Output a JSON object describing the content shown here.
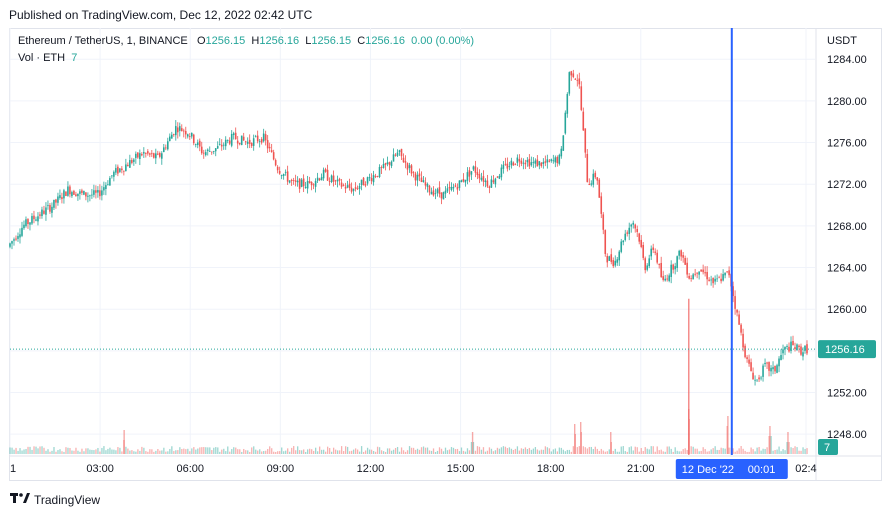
{
  "header": {
    "published": "Published on TradingView.com, Dec 12, 2022 02:42 UTC"
  },
  "legend": {
    "symbol": "Ethereum / TetherUS, 1, BINANCE",
    "o_label": "O",
    "o_value": "1256.15",
    "h_label": "H",
    "h_value": "1256.16",
    "l_label": "L",
    "l_value": "1256.15",
    "c_label": "C",
    "c_value": "1256.16",
    "change": "0.00 (0.00%)",
    "vol_label": "Vol · ETH",
    "vol_value": "7"
  },
  "footer": {
    "brand": "TradingView"
  },
  "colors": {
    "up": "#26a69a",
    "down": "#ef5350",
    "crosshair": "#2962ff",
    "grid": "#f0f3fa"
  },
  "chart_data": {
    "type": "candlestick",
    "currency_label": "USDT",
    "last_price": 1256.16,
    "last_price_label": "1256.16",
    "last_volume_label": "7",
    "ylim": [
      1246.0,
      1287.0
    ],
    "y_ticks": [
      1248,
      1252,
      1256,
      1260,
      1264,
      1268,
      1272,
      1276,
      1280,
      1284
    ],
    "y_tick_labels": [
      "1248.00",
      "1252.00",
      "1256.00",
      "1260.00",
      "1264.00",
      "1268.00",
      "1272.00",
      "1276.00",
      "1280.00",
      "1284.00"
    ],
    "x_ticks": [
      0,
      3,
      6,
      9,
      12,
      15,
      18,
      21,
      24.03,
      26.5
    ],
    "x_tick_labels": [
      "1",
      "03:00",
      "06:00",
      "09:00",
      "12:00",
      "15:00",
      "18:00",
      "21:00",
      "",
      "02:4"
    ],
    "xlim": [
      0,
      26.8
    ],
    "crosshair_time": 24.03,
    "crosshair_date_label": "12 Dec '22",
    "crosshair_time_label": "00:01",
    "price_path": [
      [
        0.0,
        1266.0
      ],
      [
        0.5,
        1268.0
      ],
      [
        1.0,
        1269.0
      ],
      [
        1.5,
        1270.0
      ],
      [
        2.0,
        1271.5
      ],
      [
        2.5,
        1271.0
      ],
      [
        3.0,
        1271.0
      ],
      [
        3.5,
        1273.0
      ],
      [
        4.0,
        1274.0
      ],
      [
        4.5,
        1275.0
      ],
      [
        5.0,
        1274.5
      ],
      [
        5.3,
        1276.0
      ],
      [
        5.6,
        1277.5
      ],
      [
        6.0,
        1277.0
      ],
      [
        6.5,
        1275.0
      ],
      [
        7.0,
        1275.5
      ],
      [
        7.5,
        1276.5
      ],
      [
        8.0,
        1276.0
      ],
      [
        8.5,
        1276.5
      ],
      [
        9.0,
        1273.5
      ],
      [
        9.5,
        1272.0
      ],
      [
        10.0,
        1272.0
      ],
      [
        10.5,
        1273.0
      ],
      [
        11.0,
        1272.0
      ],
      [
        11.5,
        1271.5
      ],
      [
        12.0,
        1272.5
      ],
      [
        12.5,
        1273.5
      ],
      [
        13.0,
        1275.0
      ],
      [
        13.5,
        1273.0
      ],
      [
        14.0,
        1271.5
      ],
      [
        14.5,
        1271.0
      ],
      [
        15.0,
        1272.0
      ],
      [
        15.5,
        1273.5
      ],
      [
        16.0,
        1272.0
      ],
      [
        16.5,
        1273.5
      ],
      [
        17.0,
        1274.5
      ],
      [
        17.5,
        1274.0
      ],
      [
        18.0,
        1274.0
      ],
      [
        18.4,
        1274.5
      ],
      [
        18.7,
        1283.0
      ],
      [
        19.0,
        1282.0
      ],
      [
        19.3,
        1272.0
      ],
      [
        19.6,
        1273.0
      ],
      [
        19.9,
        1265.0
      ],
      [
        20.2,
        1264.5
      ],
      [
        20.5,
        1267.0
      ],
      [
        20.8,
        1268.5
      ],
      [
        21.0,
        1267.0
      ],
      [
        21.2,
        1264.0
      ],
      [
        21.5,
        1266.0
      ],
      [
        21.8,
        1262.5
      ],
      [
        22.1,
        1264.0
      ],
      [
        22.4,
        1265.5
      ],
      [
        22.7,
        1263.0
      ],
      [
        23.0,
        1264.0
      ],
      [
        23.5,
        1262.5
      ],
      [
        24.0,
        1263.5
      ],
      [
        24.3,
        1259.0
      ],
      [
        24.6,
        1255.0
      ],
      [
        24.9,
        1253.0
      ],
      [
        25.2,
        1254.5
      ],
      [
        25.5,
        1254.0
      ],
      [
        25.8,
        1256.0
      ],
      [
        26.1,
        1256.5
      ],
      [
        26.4,
        1256.0
      ],
      [
        26.6,
        1256.16
      ]
    ],
    "volume_spikes": [
      [
        3.8,
        14
      ],
      [
        15.4,
        12
      ],
      [
        18.8,
        20
      ],
      [
        19.0,
        22
      ],
      [
        20.0,
        12
      ],
      [
        22.6,
        35
      ],
      [
        23.9,
        28
      ],
      [
        25.3,
        18
      ],
      [
        25.9,
        12
      ]
    ]
  }
}
